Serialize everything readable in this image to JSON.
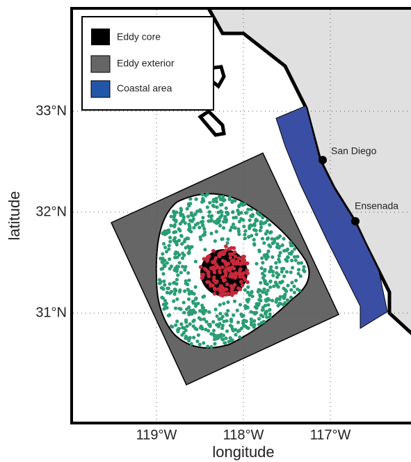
{
  "legend": {
    "items": [
      "Eddy core",
      "Eddy exterior",
      "Coastal area"
    ]
  },
  "places": [
    "San Diego",
    "Ensenada"
  ],
  "axes": {
    "xlabel": "longitude",
    "ylabel": "latitude",
    "xticks": [
      {
        "value": -119,
        "label": "119°W"
      },
      {
        "value": -118,
        "label": "118°W"
      },
      {
        "value": -117,
        "label": "117°W"
      }
    ],
    "yticks": [
      {
        "value": 33,
        "label": "33°N"
      },
      {
        "value": 32,
        "label": "32°N"
      },
      {
        "value": 31,
        "label": "31°N"
      }
    ]
  }
}
